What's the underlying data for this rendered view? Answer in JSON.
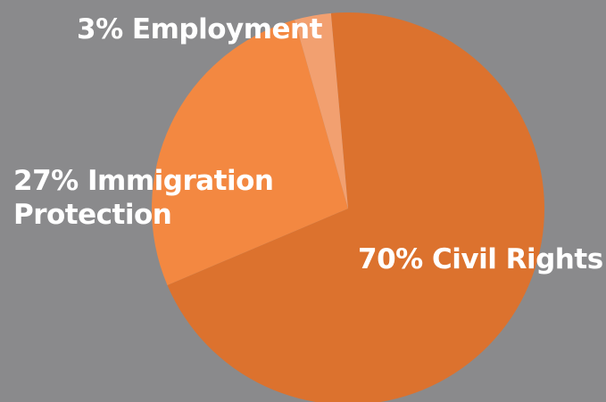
{
  "chart_data": {
    "type": "pie",
    "title": "",
    "slices": [
      {
        "label": "Civil Rights",
        "value": 70,
        "display": "70% Civil Rights",
        "color": "#dc722e"
      },
      {
        "label": "Immigration Protection",
        "value": 27,
        "display_lines": [
          "27% Immigration",
          "Protection"
        ],
        "color": "#f38841"
      },
      {
        "label": "Employment",
        "value": 3,
        "display": "3% Employment",
        "color": "#f2a070"
      }
    ],
    "background": "#8a8a8c",
    "legend": "none"
  }
}
